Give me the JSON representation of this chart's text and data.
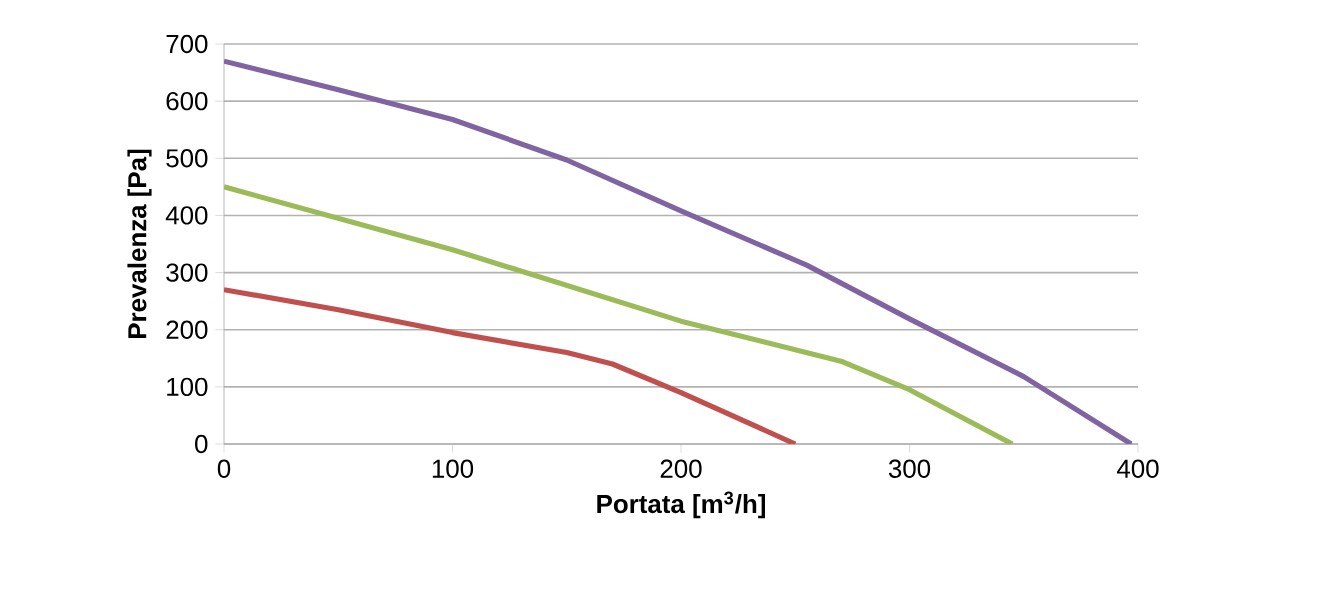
{
  "chart_data": {
    "type": "line",
    "xlabel": "Portata [m$^{3}$/h]",
    "ylabel": "Prevalenza [Pa]",
    "xlim": [
      0,
      400
    ],
    "xticks": [
      0,
      100,
      200,
      300,
      400
    ],
    "ylim": [
      0,
      700
    ],
    "yticks": [
      0,
      100,
      200,
      300,
      400,
      500,
      600,
      700
    ],
    "grid": "y",
    "marker": "none",
    "series": [
      {
        "color": "#8064a2",
        "x": [
          0,
          50,
          100,
          150,
          200,
          255,
          300,
          350,
          397
        ],
        "values": [
          670,
          620,
          568,
          497,
          408,
          313,
          219,
          118,
          0
        ]
      },
      {
        "color": "#9bbb59",
        "x": [
          0,
          100,
          200,
          270,
          300,
          345
        ],
        "values": [
          450,
          340,
          215,
          145,
          95,
          0
        ]
      },
      {
        "color": "#c0504d",
        "x": [
          0,
          50,
          100,
          150,
          170,
          200,
          250
        ],
        "values": [
          270,
          235,
          195,
          160,
          140,
          90,
          0
        ]
      }
    ]
  }
}
